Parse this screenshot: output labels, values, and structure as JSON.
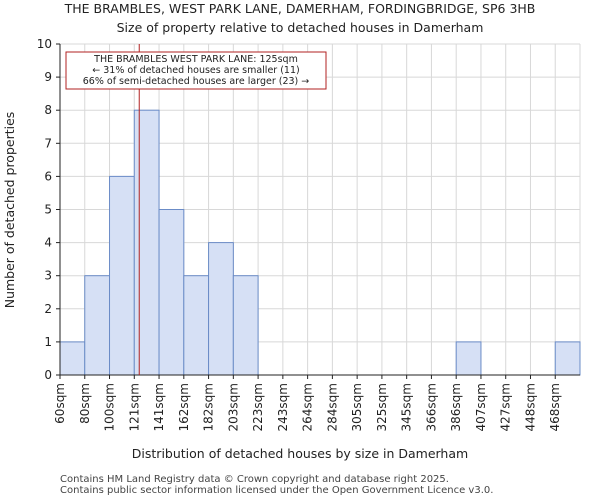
{
  "chart_data": {
    "type": "bar",
    "title": "THE BRAMBLES, WEST PARK LANE, DAMERHAM, FORDINGBRIDGE, SP6 3HB",
    "subtitle": "Size of property relative to detached houses in Damerham",
    "xlabel": "Distribution of detached houses by size in Damerham",
    "ylabel": "Number of detached properties",
    "categories": [
      "60sqm",
      "80sqm",
      "100sqm",
      "121sqm",
      "141sqm",
      "162sqm",
      "182sqm",
      "203sqm",
      "223sqm",
      "243sqm",
      "264sqm",
      "284sqm",
      "305sqm",
      "325sqm",
      "345sqm",
      "366sqm",
      "386sqm",
      "407sqm",
      "427sqm",
      "448sqm",
      "468sqm"
    ],
    "values": [
      1,
      3,
      6,
      8,
      5,
      3,
      4,
      3,
      0,
      0,
      0,
      0,
      0,
      0,
      0,
      0,
      1,
      0,
      0,
      0,
      1
    ],
    "ylim": [
      0,
      10
    ],
    "yticks": [
      0,
      1,
      2,
      3,
      4,
      5,
      6,
      7,
      8,
      9,
      10
    ],
    "grid": true,
    "bar_color": "#d6e0f5",
    "bar_edge_color": "#6b8cc7",
    "marker": {
      "value": 125,
      "unit": "sqm",
      "color": "#b22222"
    },
    "annotation": {
      "lines": [
        "THE BRAMBLES WEST PARK LANE: 125sqm",
        "← 31% of detached houses are smaller (11)",
        "66% of semi-detached houses are larger (23) →"
      ]
    }
  },
  "footer": {
    "line1": "Contains HM Land Registry data © Crown copyright and database right 2025.",
    "line2": "Contains public sector information licensed under the Open Government Licence v3.0."
  }
}
